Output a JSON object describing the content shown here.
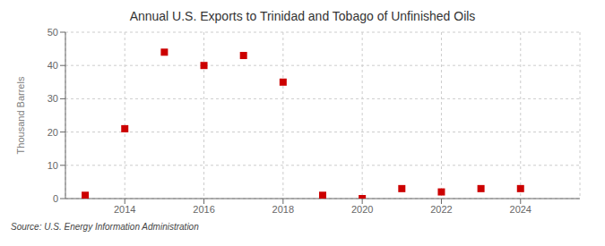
{
  "chart_data": {
    "type": "scatter",
    "title": "Annual U.S. Exports to Trinidad and Tobago of Unfinished Oils",
    "ylabel": "Thousand Barrels",
    "source": "Source: U.S. Energy Information Administration",
    "x": [
      2013,
      2014,
      2015,
      2016,
      2017,
      2018,
      2019,
      2020,
      2021,
      2022,
      2023,
      2024
    ],
    "values": [
      1,
      21,
      44,
      40,
      43,
      35,
      1,
      0,
      3,
      2,
      3,
      3
    ],
    "xlim": [
      2012.5,
      2025.5
    ],
    "ylim": [
      0,
      50
    ],
    "xticks": [
      2014,
      2016,
      2018,
      2020,
      2022,
      2024
    ],
    "yticks": [
      0,
      10,
      20,
      30,
      40,
      50
    ],
    "color": "#cc0000",
    "marker": "square",
    "grid": true
  }
}
